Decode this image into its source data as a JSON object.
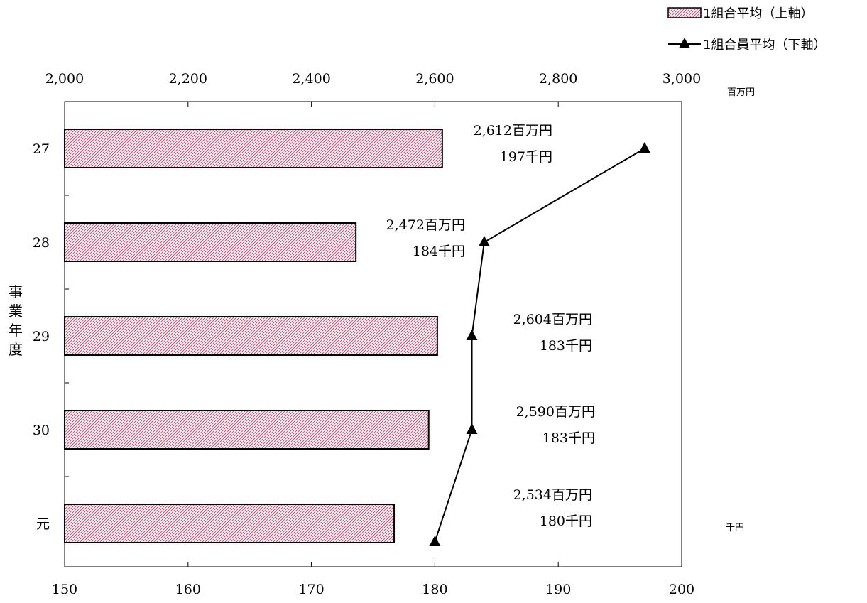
{
  "chart_data": {
    "type": "bar",
    "orientation": "horizontal",
    "categories": [
      "27",
      "28",
      "29",
      "30",
      "元"
    ],
    "ylabel": "事業年度",
    "top_axis": {
      "range": [
        2000,
        3000
      ],
      "ticks": [
        "2,000",
        "2,200",
        "2,400",
        "2,600",
        "2,800",
        "3,000"
      ],
      "tick_values": [
        2000,
        2200,
        2400,
        2600,
        2800,
        3000
      ],
      "unit": "百万円"
    },
    "bottom_axis": {
      "range": [
        150,
        200
      ],
      "ticks": [
        "150",
        "160",
        "170",
        "180",
        "190",
        "200"
      ],
      "tick_values": [
        150,
        160,
        170,
        180,
        190,
        200
      ],
      "unit": "千円"
    },
    "series": [
      {
        "name": "1組合平均（上軸）",
        "type": "bar",
        "axis": "top",
        "values": [
          2612,
          2472,
          2604,
          2590,
          2534
        ],
        "labels": [
          "2,612百万円",
          "2,472百万円",
          "2,604百万円",
          "2,590百万円",
          "2,534百万円"
        ]
      },
      {
        "name": "1組合員平均（下軸）",
        "type": "line",
        "axis": "bottom",
        "marker": "triangle",
        "values": [
          197,
          184,
          183,
          183,
          180
        ],
        "labels": [
          "197千円",
          "184千円",
          "183千円",
          "183千円",
          "180千円"
        ]
      }
    ],
    "legend_placement": "top-right",
    "grid": false,
    "colors": {
      "bar_fill": "#c0587a",
      "bar_stroke": "#000000",
      "line": "#000000"
    }
  }
}
